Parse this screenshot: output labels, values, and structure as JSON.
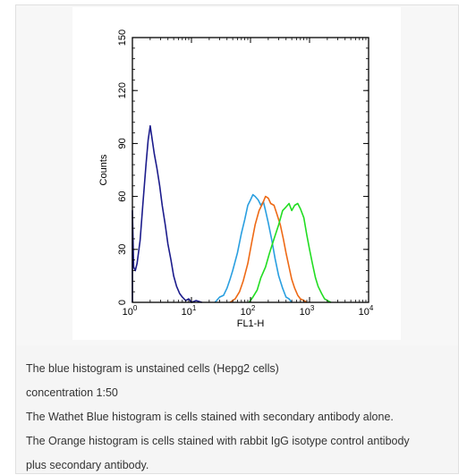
{
  "chart_data": {
    "type": "line",
    "scale": "log-x",
    "xlabel": "FL1-H",
    "ylabel": "Counts",
    "xlim": [
      1,
      10000
    ],
    "ylim": [
      0,
      150
    ],
    "x_ticks": [
      {
        "value": 1,
        "base": "10",
        "exp": "0"
      },
      {
        "value": 10,
        "base": "10",
        "exp": "1"
      },
      {
        "value": 100,
        "base": "10",
        "exp": "2"
      },
      {
        "value": 1000,
        "base": "10",
        "exp": "3"
      },
      {
        "value": 10000,
        "base": "10",
        "exp": "4"
      }
    ],
    "y_ticks": [
      "0",
      "30",
      "60",
      "90",
      "120",
      "150"
    ],
    "y_tick_values": [
      0,
      30,
      60,
      90,
      120,
      150
    ],
    "grid": false,
    "series": [
      {
        "color": "#1c1c8c",
        "points": [
          [
            1,
            0
          ],
          [
            1,
            52
          ],
          [
            1.05,
            20
          ],
          [
            1.12,
            18
          ],
          [
            1.2,
            22
          ],
          [
            1.35,
            35
          ],
          [
            1.5,
            55
          ],
          [
            1.7,
            78
          ],
          [
            1.85,
            92
          ],
          [
            2,
            100
          ],
          [
            2.15,
            93
          ],
          [
            2.35,
            84
          ],
          [
            2.6,
            76
          ],
          [
            2.9,
            66
          ],
          [
            3.2,
            55
          ],
          [
            3.6,
            44
          ],
          [
            4,
            33
          ],
          [
            4.5,
            24
          ],
          [
            5,
            15
          ],
          [
            5.6,
            9
          ],
          [
            6.3,
            5
          ],
          [
            7,
            3
          ],
          [
            8,
            1
          ],
          [
            9,
            2
          ],
          [
            10,
            0
          ],
          [
            12,
            1
          ],
          [
            15,
            0
          ]
        ]
      },
      {
        "color": "#2a9fe0",
        "points": [
          [
            25,
            0
          ],
          [
            30,
            3
          ],
          [
            35,
            4
          ],
          [
            40,
            8
          ],
          [
            45,
            13
          ],
          [
            50,
            18
          ],
          [
            60,
            28
          ],
          [
            70,
            39
          ],
          [
            80,
            47
          ],
          [
            90,
            55
          ],
          [
            100,
            58
          ],
          [
            110,
            61
          ],
          [
            120,
            60
          ],
          [
            135,
            58
          ],
          [
            150,
            55
          ],
          [
            165,
            57
          ],
          [
            180,
            52
          ],
          [
            200,
            45
          ],
          [
            230,
            35
          ],
          [
            260,
            25
          ],
          [
            300,
            15
          ],
          [
            350,
            8
          ],
          [
            400,
            3
          ],
          [
            450,
            2
          ],
          [
            500,
            0
          ]
        ]
      },
      {
        "color": "#ee6a16",
        "points": [
          [
            45,
            0
          ],
          [
            55,
            2
          ],
          [
            65,
            6
          ],
          [
            75,
            12
          ],
          [
            90,
            22
          ],
          [
            105,
            34
          ],
          [
            120,
            44
          ],
          [
            140,
            52
          ],
          [
            160,
            56
          ],
          [
            180,
            60
          ],
          [
            200,
            59
          ],
          [
            220,
            56
          ],
          [
            250,
            55
          ],
          [
            280,
            50
          ],
          [
            320,
            44
          ],
          [
            360,
            36
          ],
          [
            400,
            28
          ],
          [
            450,
            20
          ],
          [
            500,
            13
          ],
          [
            560,
            8
          ],
          [
            630,
            4
          ],
          [
            700,
            2
          ],
          [
            800,
            1
          ],
          [
            900,
            0
          ]
        ]
      },
      {
        "color": "#22dd22",
        "points": [
          [
            95,
            0
          ],
          [
            110,
            3
          ],
          [
            130,
            7
          ],
          [
            150,
            14
          ],
          [
            180,
            20
          ],
          [
            210,
            28
          ],
          [
            250,
            36
          ],
          [
            300,
            44
          ],
          [
            350,
            52
          ],
          [
            400,
            54
          ],
          [
            450,
            56
          ],
          [
            500,
            52
          ],
          [
            560,
            55
          ],
          [
            630,
            56
          ],
          [
            700,
            53
          ],
          [
            800,
            48
          ],
          [
            900,
            38
          ],
          [
            1000,
            30
          ],
          [
            1120,
            22
          ],
          [
            1260,
            14
          ],
          [
            1400,
            9
          ],
          [
            1600,
            5
          ],
          [
            1800,
            2
          ],
          [
            2000,
            1
          ],
          [
            2300,
            0
          ]
        ]
      }
    ]
  },
  "caption": {
    "lines": [
      "The blue histogram is unstained cells (Hepg2 cells)",
      "concentration 1:50",
      "The Wathet Blue histogram is cells stained with secondary antibody alone.",
      "The Orange histogram is cells stained with rabbit IgG isotype control antibody",
      "plus secondary antibody."
    ]
  }
}
